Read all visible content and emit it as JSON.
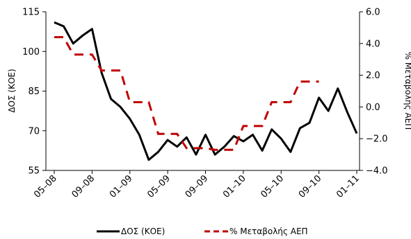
{
  "chart_data": {
    "type": "line",
    "x_tick_labels": [
      "05–08",
      "09–08",
      "01–09",
      "05–09",
      "09–09",
      "01–10",
      "05–10",
      "09–10",
      "01–11"
    ],
    "left_axis": {
      "label": "ΔΟΣ (ΚΟΕ)",
      "min": 55,
      "max": 115,
      "ticks": [
        "55",
        "70",
        "85",
        "100",
        "115"
      ],
      "tick_values": [
        55,
        70,
        85,
        100,
        115
      ]
    },
    "right_axis": {
      "label": "% Μεταβολής ΑΕΠ",
      "min": -4.0,
      "max": 6.0,
      "ticks": [
        "−4.0",
        "−2.0",
        "0.0",
        "2.0",
        "4.0",
        "6.0"
      ],
      "tick_values": [
        -4,
        -2,
        0,
        2,
        4,
        6
      ]
    },
    "series": [
      {
        "name": "ΔΟΣ (ΚΟΕ)",
        "axis": "left",
        "style": "solid",
        "color": "#000000",
        "values": [
          111,
          109.5,
          103,
          106,
          108.5,
          92,
          82,
          79,
          74.5,
          68.5,
          59,
          62,
          66.5,
          64,
          67.5,
          61,
          68.5,
          61,
          64,
          68,
          66,
          68.5,
          62.5,
          70.5,
          67,
          62,
          71,
          73,
          82.5,
          77.5,
          86,
          77,
          69
        ]
      },
      {
        "name": "% Μεταβολής ΑΕΠ",
        "axis": "right",
        "style": "dashed",
        "color": "#c00000",
        "values": [
          4.4,
          4.4,
          3.3,
          3.3,
          3.3,
          2.3,
          2.3,
          2.3,
          0.3,
          0.3,
          0.3,
          -1.7,
          -1.7,
          -1.7,
          -2.6,
          -2.6,
          -2.6,
          -2.7,
          -2.7,
          -2.7,
          -1.2,
          -1.2,
          -1.2,
          0.3,
          0.3,
          0.3,
          1.6,
          1.6,
          1.6
        ]
      }
    ],
    "legend_position": "bottom",
    "grid": false
  }
}
